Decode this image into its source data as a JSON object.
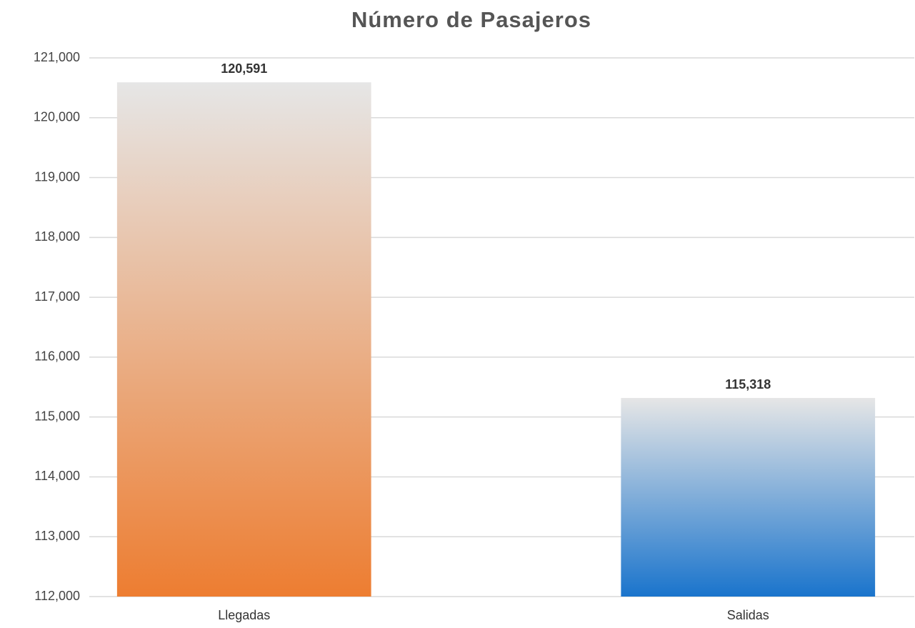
{
  "chart_data": {
    "type": "bar",
    "title": "Número de Pasajeros",
    "categories": [
      "Llegadas",
      "Salidas"
    ],
    "values": [
      120591,
      115318
    ],
    "value_labels": [
      "120,591",
      "115,318"
    ],
    "colors": [
      "#ed7d31",
      "#1a74cc"
    ],
    "ylim": [
      112000,
      121000
    ],
    "yticks": [
      {
        "value": 112000,
        "label": "112,000"
      },
      {
        "value": 113000,
        "label": "113,000"
      },
      {
        "value": 114000,
        "label": "114,000"
      },
      {
        "value": 115000,
        "label": "115,000"
      },
      {
        "value": 116000,
        "label": "116,000"
      },
      {
        "value": 117000,
        "label": "117,000"
      },
      {
        "value": 118000,
        "label": "118,000"
      },
      {
        "value": 119000,
        "label": "119,000"
      },
      {
        "value": 120000,
        "label": "120,000"
      },
      {
        "value": 121000,
        "label": "121,000"
      }
    ],
    "grid": true
  }
}
